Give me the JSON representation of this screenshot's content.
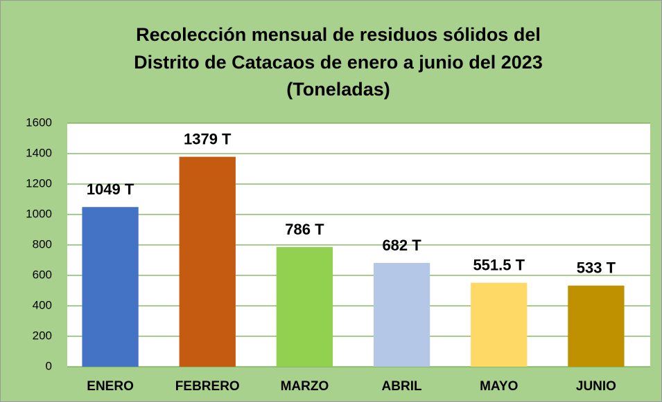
{
  "chart_data": {
    "type": "bar",
    "title": [
      "Recolección mensual de residuos sólidos del",
      "Distrito de Catacaos de enero a junio del 2023",
      "(Toneladas)"
    ],
    "categories": [
      "ENERO",
      "FEBRERO",
      "MARZO",
      "ABRIL",
      "MAYO",
      "JUNIO"
    ],
    "values": [
      1049,
      1379,
      786,
      682,
      551.5,
      533
    ],
    "value_labels": [
      "1049 T",
      "1379 T",
      "786 T",
      "682 T",
      "551.5 T",
      "533 T"
    ],
    "colors": [
      "#4472c4",
      "#c55a11",
      "#92d050",
      "#b4c7e7",
      "#ffd966",
      "#bf9000"
    ],
    "ylim": [
      0,
      1600
    ],
    "yticks": [
      0,
      200,
      400,
      600,
      800,
      1000,
      1200,
      1400,
      1600
    ],
    "grid": true
  }
}
